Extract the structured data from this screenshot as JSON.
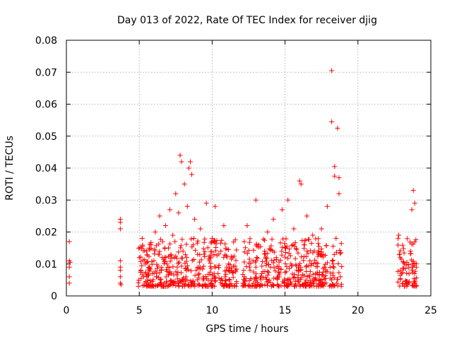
{
  "chart_data": {
    "type": "scatter",
    "title": "Day 013 of 2022, Rate Of TEC Index for receiver djig",
    "xlabel": "GPS time / hours",
    "ylabel": "ROTI / TECUs",
    "xlim": [
      0,
      25
    ],
    "ylim": [
      0,
      0.08
    ],
    "x_ticks": [
      0,
      5,
      10,
      15,
      20,
      25
    ],
    "x_tick_labels": [
      "0",
      "5",
      "10",
      "15",
      "20",
      "25"
    ],
    "y_ticks": [
      0,
      0.01,
      0.02,
      0.03,
      0.04,
      0.05,
      0.06,
      0.07,
      0.08
    ],
    "y_tick_labels": [
      "0",
      "0.01",
      "0.02",
      "0.03",
      "0.04",
      "0.05",
      "0.06",
      "0.07",
      "0.08"
    ],
    "grid": true,
    "marker": "plus",
    "marker_color": "#ff0000",
    "series": [
      {
        "name": "ROTI",
        "points": [
          [
            0.2,
            0.017
          ],
          [
            0.2,
            0.011
          ],
          [
            0.2,
            0.009
          ],
          [
            0.2,
            0.006
          ],
          [
            0.2,
            0.004
          ],
          [
            0.25,
            0.0105
          ],
          [
            3.7,
            0.024
          ],
          [
            3.7,
            0.023
          ],
          [
            3.7,
            0.021
          ],
          [
            3.7,
            0.011
          ],
          [
            3.7,
            0.009
          ],
          [
            3.7,
            0.008
          ],
          [
            3.7,
            0.006
          ],
          [
            3.7,
            0.004
          ],
          [
            3.75,
            0.0035
          ],
          [
            5.0,
            0.012
          ],
          [
            5.1,
            0.008
          ],
          [
            5.2,
            0.018
          ],
          [
            5.3,
            0.006
          ],
          [
            5.4,
            0.01
          ],
          [
            5.5,
            0.014
          ],
          [
            5.6,
            0.005
          ],
          [
            5.7,
            0.009
          ],
          [
            5.8,
            0.016
          ],
          [
            5.9,
            0.007
          ],
          [
            6.0,
            0.011
          ],
          [
            6.1,
            0.02
          ],
          [
            6.2,
            0.006
          ],
          [
            6.3,
            0.013
          ],
          [
            6.4,
            0.025
          ],
          [
            6.5,
            0.008
          ],
          [
            6.6,
            0.017
          ],
          [
            6.7,
            0.004
          ],
          [
            6.8,
            0.022
          ],
          [
            6.9,
            0.01
          ],
          [
            7.0,
            0.015
          ],
          [
            7.1,
            0.027
          ],
          [
            7.2,
            0.007
          ],
          [
            7.3,
            0.019
          ],
          [
            7.4,
            0.012
          ],
          [
            7.5,
            0.032
          ],
          [
            7.6,
            0.009
          ],
          [
            7.7,
            0.026
          ],
          [
            7.8,
            0.044
          ],
          [
            7.9,
            0.042
          ],
          [
            8.0,
            0.014
          ],
          [
            8.1,
            0.035
          ],
          [
            8.2,
            0.006
          ],
          [
            8.3,
            0.028
          ],
          [
            8.4,
            0.04
          ],
          [
            8.5,
            0.042
          ],
          [
            8.6,
            0.038
          ],
          [
            8.7,
            0.016
          ],
          [
            8.8,
            0.024
          ],
          [
            8.9,
            0.008
          ],
          [
            9.0,
            0.013
          ],
          [
            9.2,
            0.021
          ],
          [
            9.4,
            0.006
          ],
          [
            9.6,
            0.029
          ],
          [
            9.8,
            0.011
          ],
          [
            10.0,
            0.018
          ],
          [
            10.2,
            0.028
          ],
          [
            10.4,
            0.007
          ],
          [
            10.6,
            0.014
          ],
          [
            10.8,
            0.022
          ],
          [
            11.0,
            0.009
          ],
          [
            11.2,
            0.005
          ],
          [
            11.4,
            0.012
          ],
          [
            11.6,
            0.008
          ],
          [
            12.2,
            0.017
          ],
          [
            12.4,
            0.022
          ],
          [
            12.6,
            0.008
          ],
          [
            12.8,
            0.011
          ],
          [
            13.0,
            0.03
          ],
          [
            13.2,
            0.016
          ],
          [
            13.4,
            0.007
          ],
          [
            13.6,
            0.014
          ],
          [
            13.8,
            0.02
          ],
          [
            14.0,
            0.009
          ],
          [
            14.2,
            0.024
          ],
          [
            14.4,
            0.012
          ],
          [
            14.6,
            0.006
          ],
          [
            14.8,
            0.027
          ],
          [
            15.0,
            0.015
          ],
          [
            15.2,
            0.03
          ],
          [
            15.4,
            0.01
          ],
          [
            15.6,
            0.021
          ],
          [
            15.8,
            0.008
          ],
          [
            16.0,
            0.036
          ],
          [
            16.1,
            0.035
          ],
          [
            16.3,
            0.016
          ],
          [
            16.5,
            0.025
          ],
          [
            16.7,
            0.011
          ],
          [
            16.9,
            0.019
          ],
          [
            17.1,
            0.007
          ],
          [
            17.3,
            0.013
          ],
          [
            17.5,
            0.021
          ],
          [
            17.7,
            0.009
          ],
          [
            17.9,
            0.028
          ],
          [
            18.2,
            0.0705
          ],
          [
            18.2,
            0.0545
          ],
          [
            18.4,
            0.0405
          ],
          [
            18.4,
            0.0375
          ],
          [
            18.6,
            0.0525
          ],
          [
            18.7,
            0.037
          ],
          [
            18.7,
            0.032
          ],
          [
            18.5,
            0.018
          ],
          [
            18.3,
            0.01
          ],
          [
            18.8,
            0.006
          ],
          [
            22.8,
            0.019
          ],
          [
            22.9,
            0.012
          ],
          [
            23.0,
            0.007
          ],
          [
            23.2,
            0.01
          ],
          [
            23.4,
            0.004
          ],
          [
            23.6,
            0.014
          ],
          [
            23.7,
            0.027
          ],
          [
            23.8,
            0.033
          ],
          [
            23.9,
            0.029
          ],
          [
            24.0,
            0.009
          ]
        ]
      }
    ]
  }
}
